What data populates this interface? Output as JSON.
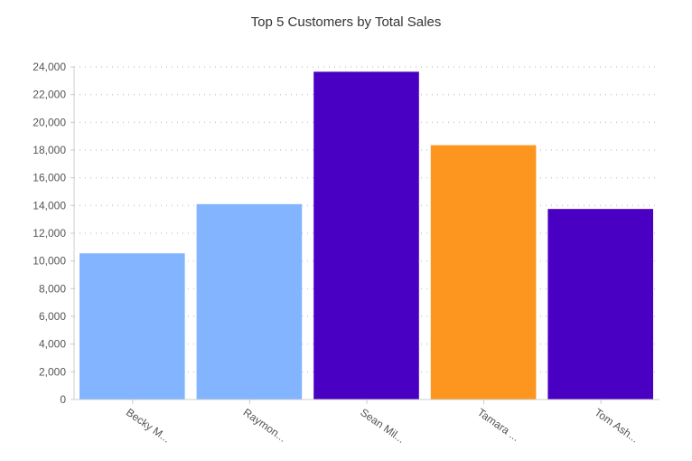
{
  "chart_data": {
    "type": "bar",
    "title": "Top 5 Customers by Total Sales",
    "categories": [
      "Becky M...",
      "Raymon...",
      "Sean Mil...",
      "Tamara ...",
      "Tom Ash..."
    ],
    "values": [
      10550,
      14100,
      23650,
      18350,
      13750
    ],
    "colors": [
      "#82b4ff",
      "#82b4ff",
      "#4a00c2",
      "#fd961e",
      "#4a00c2"
    ],
    "xlabel": "",
    "ylabel": "",
    "ylim": [
      0,
      24000
    ],
    "yticks": [
      "0",
      "2,000",
      "4,000",
      "6,000",
      "8,000",
      "10,000",
      "12,000",
      "14,000",
      "16,000",
      "18,000",
      "20,000",
      "22,000",
      "24,000"
    ],
    "grid": true,
    "legend": "none"
  }
}
